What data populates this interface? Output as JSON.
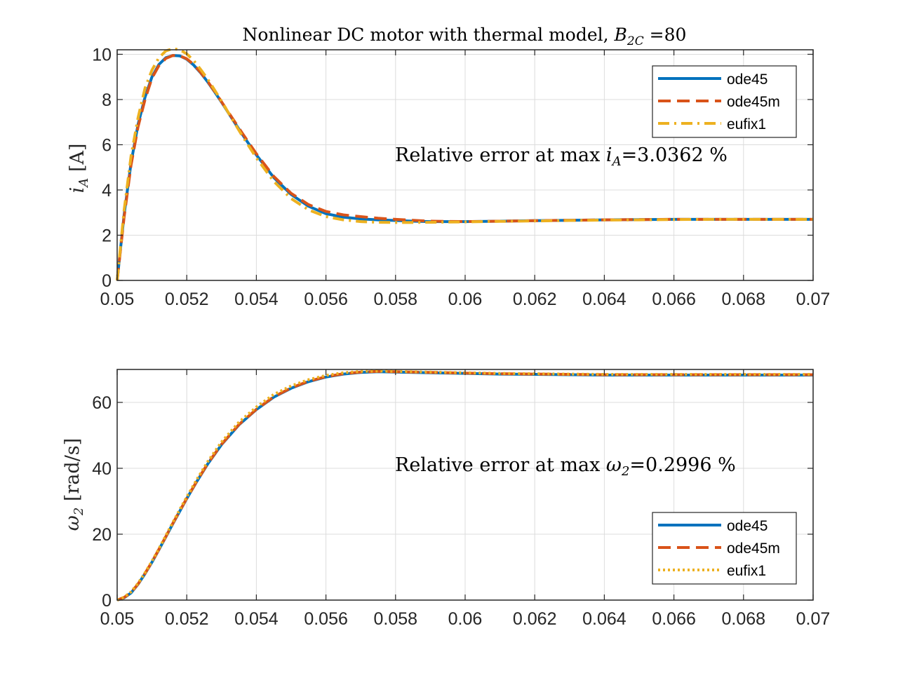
{
  "chart_data": [
    {
      "type": "line",
      "title": "Nonlinear DC motor with thermal model, B_2C =80",
      "title_parts": {
        "prefix": "Nonlinear DC motor with thermal model, ",
        "sym": "B",
        "sub": "2C",
        "suffix": " =80"
      },
      "ylabel": "i_A [A]",
      "ylabel_parts": {
        "sym": "i",
        "sub": "A",
        "rest": " [A]"
      },
      "xlim": [
        0.05,
        0.07
      ],
      "ylim": [
        0,
        10.2
      ],
      "xticks": [
        "0.05",
        "0.052",
        "0.054",
        "0.056",
        "0.058",
        "0.06",
        "0.062",
        "0.064",
        "0.066",
        "0.068",
        "0.07"
      ],
      "yticks": [
        "0",
        "2",
        "4",
        "6",
        "8",
        "10"
      ],
      "grid": true,
      "legend_position": "top-right",
      "annotation": "Relative error at max i_A=3.0362 %",
      "annotation_parts": {
        "prefix": "Relative error at max ",
        "sym": "i",
        "sub": "A",
        "suffix": "=3.0362 %"
      },
      "x": [
        0.05,
        0.0502,
        0.0504,
        0.0506,
        0.0508,
        0.051,
        0.0512,
        0.0514,
        0.0516,
        0.0518,
        0.052,
        0.0522,
        0.0524,
        0.0526,
        0.0528,
        0.053,
        0.0533,
        0.0536,
        0.054,
        0.0545,
        0.055,
        0.0555,
        0.056,
        0.0565,
        0.057,
        0.0575,
        0.058,
        0.0585,
        0.059,
        0.0595,
        0.06,
        0.061,
        0.062,
        0.063,
        0.064,
        0.065,
        0.066,
        0.067,
        0.068,
        0.069,
        0.07
      ],
      "series": [
        {
          "name": "ode45",
          "color": "#0072BD",
          "dash": "solid",
          "values": [
            0,
            2.9,
            5.2,
            6.9,
            8.1,
            9.0,
            9.55,
            9.85,
            9.95,
            9.93,
            9.78,
            9.52,
            9.18,
            8.78,
            8.34,
            7.88,
            7.16,
            6.45,
            5.55,
            4.55,
            3.8,
            3.28,
            2.95,
            2.8,
            2.72,
            2.68,
            2.65,
            2.62,
            2.6,
            2.6,
            2.6,
            2.62,
            2.64,
            2.66,
            2.68,
            2.69,
            2.7,
            2.7,
            2.7,
            2.7,
            2.7
          ]
        },
        {
          "name": "ode45m",
          "color": "#D95319",
          "dash": "dashed",
          "values": [
            0,
            2.8,
            5.1,
            6.8,
            8.0,
            8.95,
            9.5,
            9.82,
            9.95,
            9.93,
            9.8,
            9.55,
            9.2,
            8.8,
            8.36,
            7.9,
            7.2,
            6.5,
            5.6,
            4.6,
            3.85,
            3.35,
            3.05,
            2.9,
            2.82,
            2.75,
            2.7,
            2.66,
            2.62,
            2.61,
            2.6,
            2.62,
            2.64,
            2.66,
            2.68,
            2.69,
            2.7,
            2.7,
            2.7,
            2.7,
            2.7
          ]
        },
        {
          "name": "eufix1",
          "color": "#EDB120",
          "dash": "dashdot",
          "values": [
            0,
            3.1,
            5.5,
            7.2,
            8.5,
            9.3,
            9.85,
            10.15,
            10.25,
            10.2,
            10.02,
            9.72,
            9.33,
            8.9,
            8.42,
            7.92,
            7.15,
            6.38,
            5.42,
            4.38,
            3.62,
            3.12,
            2.82,
            2.68,
            2.6,
            2.57,
            2.56,
            2.56,
            2.57,
            2.58,
            2.59,
            2.61,
            2.63,
            2.65,
            2.67,
            2.68,
            2.69,
            2.7,
            2.7,
            2.7,
            2.7
          ]
        }
      ]
    },
    {
      "type": "line",
      "ylabel": "ω_2 [rad/s]",
      "ylabel_parts": {
        "sym": "ω",
        "sub": "2",
        "rest": " [rad/s]"
      },
      "xlim": [
        0.05,
        0.07
      ],
      "ylim": [
        0,
        70
      ],
      "xticks": [
        "0.05",
        "0.052",
        "0.054",
        "0.056",
        "0.058",
        "0.06",
        "0.062",
        "0.064",
        "0.066",
        "0.068",
        "0.07"
      ],
      "yticks": [
        "0",
        "20",
        "40",
        "60"
      ],
      "grid": true,
      "legend_position": "bottom-right",
      "annotation": "Relative error at max ω_2=0.2996 %",
      "annotation_parts": {
        "prefix": "Relative error at max ",
        "sym": "ω",
        "sub": "2",
        "suffix": "=0.2996 %"
      },
      "x": [
        0.05,
        0.0502,
        0.0504,
        0.0506,
        0.0508,
        0.051,
        0.0512,
        0.0514,
        0.0516,
        0.0518,
        0.052,
        0.0523,
        0.0526,
        0.053,
        0.0535,
        0.054,
        0.0545,
        0.055,
        0.0555,
        0.056,
        0.0565,
        0.057,
        0.0575,
        0.058,
        0.059,
        0.06,
        0.061,
        0.062,
        0.063,
        0.064,
        0.065,
        0.066,
        0.067,
        0.068,
        0.069,
        0.07
      ],
      "series": [
        {
          "name": "ode45",
          "color": "#0072BD",
          "dash": "solid",
          "values": [
            0,
            0.7,
            2.2,
            4.8,
            8.0,
            11.5,
            15.3,
            19.2,
            23.2,
            27.0,
            30.8,
            36.2,
            41.3,
            47.2,
            53.2,
            57.8,
            61.6,
            64.3,
            66.3,
            67.7,
            68.6,
            69.1,
            69.3,
            69.2,
            69.0,
            68.8,
            68.6,
            68.5,
            68.4,
            68.3,
            68.3,
            68.3,
            68.3,
            68.3,
            68.3,
            68.3
          ]
        },
        {
          "name": "ode45m",
          "color": "#D95319",
          "dash": "dashed",
          "values": [
            0,
            0.8,
            2.3,
            4.9,
            8.1,
            11.6,
            15.4,
            19.3,
            23.3,
            27.1,
            30.9,
            36.3,
            41.4,
            47.3,
            53.3,
            57.9,
            61.7,
            64.4,
            66.4,
            67.8,
            68.7,
            69.2,
            69.4,
            69.3,
            69.1,
            68.9,
            68.7,
            68.6,
            68.5,
            68.4,
            68.4,
            68.4,
            68.4,
            68.4,
            68.4,
            68.4
          ]
        },
        {
          "name": "eufix1",
          "color": "#EDB120",
          "dash": "dotted",
          "values": [
            0,
            0.9,
            2.5,
            5.1,
            8.3,
            11.8,
            15.6,
            19.6,
            23.6,
            27.5,
            31.3,
            36.8,
            42.0,
            48.0,
            54.0,
            58.6,
            62.4,
            65.0,
            66.9,
            68.2,
            69.0,
            69.4,
            69.5,
            69.4,
            69.2,
            69.0,
            68.8,
            68.7,
            68.6,
            68.5,
            68.5,
            68.5,
            68.5,
            68.5,
            68.5,
            68.5
          ]
        }
      ]
    }
  ]
}
